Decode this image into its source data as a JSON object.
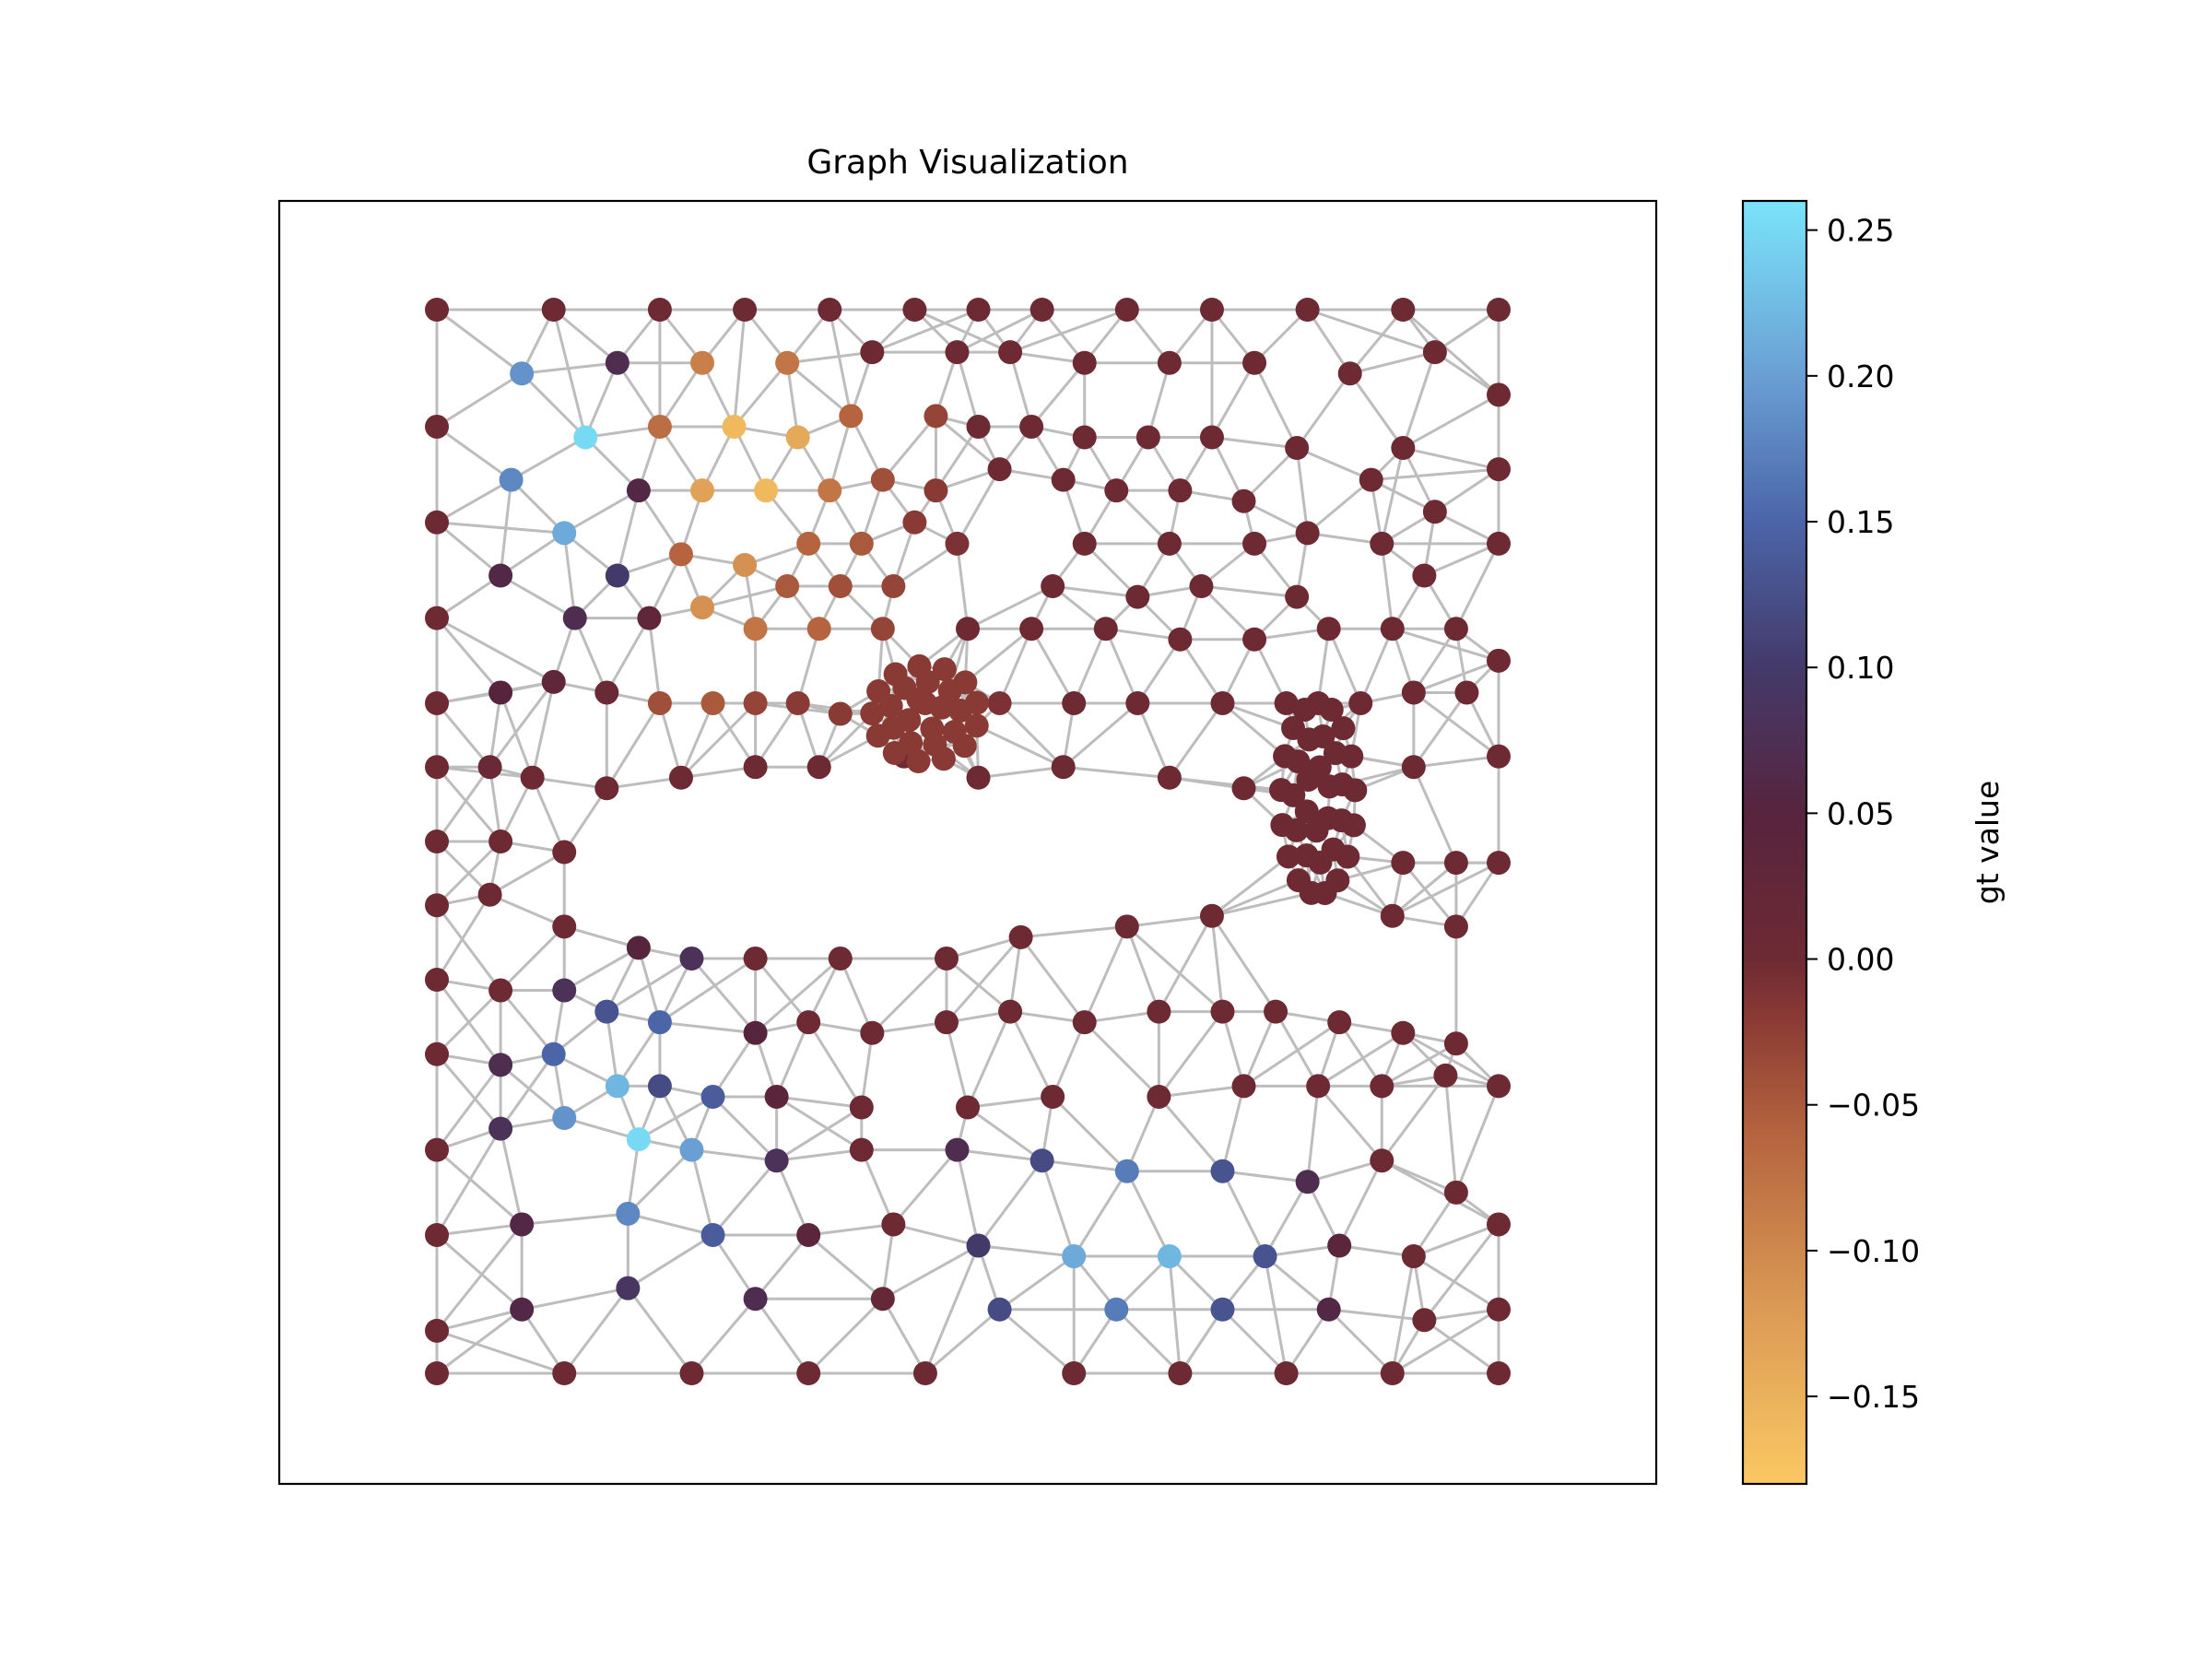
{
  "title": "Graph Visualization",
  "colorbar": {
    "label": "gt value",
    "range": [
      -0.18,
      0.26
    ],
    "ticks": [
      {
        "value": 0.25,
        "label": "0.25"
      },
      {
        "value": 0.2,
        "label": "0.20"
      },
      {
        "value": 0.15,
        "label": "0.15"
      },
      {
        "value": 0.1,
        "label": "0.10"
      },
      {
        "value": 0.05,
        "label": "0.05"
      },
      {
        "value": 0.0,
        "label": "0.00"
      },
      {
        "value": -0.05,
        "label": "−0.05"
      },
      {
        "value": -0.1,
        "label": "−0.10"
      },
      {
        "value": -0.15,
        "label": "−0.15"
      }
    ],
    "colormap": [
      {
        "value": -0.18,
        "color": "#FAC863"
      },
      {
        "value": -0.12,
        "color": "#DB9A55"
      },
      {
        "value": -0.06,
        "color": "#B5643F"
      },
      {
        "value": -0.02,
        "color": "#8A3A34"
      },
      {
        "value": 0.0,
        "color": "#6D2A33"
      },
      {
        "value": 0.05,
        "color": "#57243E"
      },
      {
        "value": 0.1,
        "color": "#443A6A"
      },
      {
        "value": 0.15,
        "color": "#4B65A8"
      },
      {
        "value": 0.2,
        "color": "#6A9FD4"
      },
      {
        "value": 0.26,
        "color": "#7AE4FA"
      }
    ]
  },
  "colors": {
    "edge": "#BDBDBD",
    "frame": "#000000"
  },
  "chart_data": {
    "type": "scatter",
    "title": "Graph Visualization",
    "description_of_values": "gt value per node; node positions are the mesh coordinates of the graph",
    "xlim": [
      0,
      1
    ],
    "ylim": [
      0,
      1
    ],
    "grid": false,
    "nodes": [
      {
        "x": 0.0,
        "y": 1.0,
        "v": 0.0
      },
      {
        "x": 0.11,
        "y": 1.0,
        "v": 0.0
      },
      {
        "x": 0.21,
        "y": 1.0,
        "v": 0.0
      },
      {
        "x": 0.29,
        "y": 1.0,
        "v": 0.0
      },
      {
        "x": 0.37,
        "y": 1.0,
        "v": 0.0
      },
      {
        "x": 0.45,
        "y": 1.0,
        "v": 0.0
      },
      {
        "x": 0.51,
        "y": 1.0,
        "v": 0.0
      },
      {
        "x": 0.57,
        "y": 1.0,
        "v": 0.0
      },
      {
        "x": 0.65,
        "y": 1.0,
        "v": 0.0
      },
      {
        "x": 0.73,
        "y": 1.0,
        "v": 0.0
      },
      {
        "x": 0.82,
        "y": 1.0,
        "v": 0.0
      },
      {
        "x": 0.91,
        "y": 1.0,
        "v": 0.0
      },
      {
        "x": 1.0,
        "y": 1.0,
        "v": 0.0
      },
      {
        "x": 0.08,
        "y": 0.94,
        "v": 0.19
      },
      {
        "x": 0.17,
        "y": 0.95,
        "v": 0.07
      },
      {
        "x": 0.25,
        "y": 0.95,
        "v": -0.09
      },
      {
        "x": 0.33,
        "y": 0.95,
        "v": -0.08
      },
      {
        "x": 0.41,
        "y": 0.96,
        "v": 0.0
      },
      {
        "x": 0.49,
        "y": 0.96,
        "v": 0.0
      },
      {
        "x": 0.54,
        "y": 0.96,
        "v": 0.0
      },
      {
        "x": 0.61,
        "y": 0.95,
        "v": 0.0
      },
      {
        "x": 0.69,
        "y": 0.95,
        "v": 0.0
      },
      {
        "x": 0.77,
        "y": 0.95,
        "v": 0.0
      },
      {
        "x": 0.86,
        "y": 0.94,
        "v": 0.0
      },
      {
        "x": 0.94,
        "y": 0.96,
        "v": 0.0
      },
      {
        "x": 1.0,
        "y": 0.92,
        "v": 0.0
      },
      {
        "x": 0.0,
        "y": 0.89,
        "v": 0.0
      },
      {
        "x": 0.14,
        "y": 0.88,
        "v": 0.25
      },
      {
        "x": 0.21,
        "y": 0.89,
        "v": -0.07
      },
      {
        "x": 0.28,
        "y": 0.89,
        "v": -0.16
      },
      {
        "x": 0.34,
        "y": 0.88,
        "v": -0.14
      },
      {
        "x": 0.39,
        "y": 0.9,
        "v": -0.06
      },
      {
        "x": 0.47,
        "y": 0.9,
        "v": -0.03
      },
      {
        "x": 0.51,
        "y": 0.89,
        "v": 0.0
      },
      {
        "x": 0.56,
        "y": 0.89,
        "v": 0.0
      },
      {
        "x": 0.61,
        "y": 0.88,
        "v": 0.0
      },
      {
        "x": 0.67,
        "y": 0.88,
        "v": 0.0
      },
      {
        "x": 0.73,
        "y": 0.88,
        "v": 0.0
      },
      {
        "x": 0.81,
        "y": 0.87,
        "v": 0.0
      },
      {
        "x": 0.91,
        "y": 0.87,
        "v": 0.0
      },
      {
        "x": 1.0,
        "y": 0.85,
        "v": 0.0
      },
      {
        "x": 0.07,
        "y": 0.84,
        "v": 0.18
      },
      {
        "x": 0.19,
        "y": 0.83,
        "v": 0.06
      },
      {
        "x": 0.25,
        "y": 0.83,
        "v": -0.13
      },
      {
        "x": 0.31,
        "y": 0.83,
        "v": -0.16
      },
      {
        "x": 0.37,
        "y": 0.83,
        "v": -0.08
      },
      {
        "x": 0.42,
        "y": 0.84,
        "v": -0.04
      },
      {
        "x": 0.47,
        "y": 0.83,
        "v": -0.02
      },
      {
        "x": 0.53,
        "y": 0.85,
        "v": 0.0
      },
      {
        "x": 0.59,
        "y": 0.84,
        "v": 0.0
      },
      {
        "x": 0.64,
        "y": 0.83,
        "v": 0.0
      },
      {
        "x": 0.7,
        "y": 0.83,
        "v": 0.0
      },
      {
        "x": 0.76,
        "y": 0.82,
        "v": 0.0
      },
      {
        "x": 0.88,
        "y": 0.84,
        "v": 0.0
      },
      {
        "x": 0.94,
        "y": 0.81,
        "v": 0.0
      },
      {
        "x": 0.0,
        "y": 0.8,
        "v": 0.0
      },
      {
        "x": 0.12,
        "y": 0.79,
        "v": 0.21
      },
      {
        "x": 0.23,
        "y": 0.77,
        "v": -0.06
      },
      {
        "x": 0.35,
        "y": 0.78,
        "v": -0.06
      },
      {
        "x": 0.4,
        "y": 0.78,
        "v": -0.05
      },
      {
        "x": 0.45,
        "y": 0.8,
        "v": -0.02
      },
      {
        "x": 0.49,
        "y": 0.78,
        "v": -0.01
      },
      {
        "x": 0.61,
        "y": 0.78,
        "v": 0.0
      },
      {
        "x": 0.69,
        "y": 0.78,
        "v": 0.0
      },
      {
        "x": 0.77,
        "y": 0.78,
        "v": 0.0
      },
      {
        "x": 0.82,
        "y": 0.79,
        "v": 0.0
      },
      {
        "x": 0.89,
        "y": 0.78,
        "v": 0.0
      },
      {
        "x": 1.0,
        "y": 0.78,
        "v": 0.0
      },
      {
        "x": 0.06,
        "y": 0.75,
        "v": 0.06
      },
      {
        "x": 0.17,
        "y": 0.75,
        "v": 0.1
      },
      {
        "x": 0.29,
        "y": 0.76,
        "v": -0.11
      },
      {
        "x": 0.33,
        "y": 0.74,
        "v": -0.05
      },
      {
        "x": 0.38,
        "y": 0.74,
        "v": -0.04
      },
      {
        "x": 0.43,
        "y": 0.74,
        "v": -0.03
      },
      {
        "x": 0.58,
        "y": 0.74,
        "v": 0.0
      },
      {
        "x": 0.66,
        "y": 0.73,
        "v": 0.0
      },
      {
        "x": 0.72,
        "y": 0.74,
        "v": 0.0
      },
      {
        "x": 0.81,
        "y": 0.73,
        "v": 0.0
      },
      {
        "x": 0.93,
        "y": 0.75,
        "v": 0.0
      },
      {
        "x": 0.0,
        "y": 0.71,
        "v": 0.0
      },
      {
        "x": 0.13,
        "y": 0.71,
        "v": 0.07
      },
      {
        "x": 0.2,
        "y": 0.71,
        "v": 0.03
      },
      {
        "x": 0.25,
        "y": 0.72,
        "v": -0.11
      },
      {
        "x": 0.3,
        "y": 0.7,
        "v": -0.08
      },
      {
        "x": 0.36,
        "y": 0.7,
        "v": -0.06
      },
      {
        "x": 0.42,
        "y": 0.7,
        "v": -0.03
      },
      {
        "x": 0.5,
        "y": 0.7,
        "v": 0.0
      },
      {
        "x": 0.56,
        "y": 0.7,
        "v": 0.0
      },
      {
        "x": 0.63,
        "y": 0.7,
        "v": 0.0
      },
      {
        "x": 0.7,
        "y": 0.69,
        "v": 0.0
      },
      {
        "x": 0.77,
        "y": 0.69,
        "v": 0.0
      },
      {
        "x": 0.84,
        "y": 0.7,
        "v": 0.0
      },
      {
        "x": 0.9,
        "y": 0.7,
        "v": 0.0
      },
      {
        "x": 0.96,
        "y": 0.7,
        "v": 0.0
      },
      {
        "x": 1.0,
        "y": 0.67,
        "v": 0.0
      },
      {
        "x": 0.0,
        "y": 0.63,
        "v": 0.0
      },
      {
        "x": 0.06,
        "y": 0.64,
        "v": 0.05
      },
      {
        "x": 0.11,
        "y": 0.65,
        "v": 0.03
      },
      {
        "x": 0.16,
        "y": 0.64,
        "v": 0.01
      },
      {
        "x": 0.21,
        "y": 0.63,
        "v": -0.04
      },
      {
        "x": 0.26,
        "y": 0.63,
        "v": -0.05
      },
      {
        "x": 0.3,
        "y": 0.63,
        "v": -0.03
      },
      {
        "x": 0.34,
        "y": 0.63,
        "v": -0.02
      },
      {
        "x": 0.38,
        "y": 0.62,
        "v": -0.02
      },
      {
        "x": 0.46,
        "y": 0.63,
        "v": -0.02
      },
      {
        "x": 0.53,
        "y": 0.63,
        "v": -0.01
      },
      {
        "x": 0.6,
        "y": 0.63,
        "v": 0.0
      },
      {
        "x": 0.66,
        "y": 0.63,
        "v": 0.0
      },
      {
        "x": 0.74,
        "y": 0.63,
        "v": 0.0
      },
      {
        "x": 0.8,
        "y": 0.63,
        "v": 0.0
      },
      {
        "x": 0.87,
        "y": 0.63,
        "v": 0.0
      },
      {
        "x": 0.92,
        "y": 0.64,
        "v": 0.0
      },
      {
        "x": 0.97,
        "y": 0.64,
        "v": 0.0
      },
      {
        "x": 0.0,
        "y": 0.57,
        "v": 0.0
      },
      {
        "x": 0.05,
        "y": 0.57,
        "v": 0.01
      },
      {
        "x": 0.09,
        "y": 0.56,
        "v": 0.0
      },
      {
        "x": 0.16,
        "y": 0.55,
        "v": 0.0
      },
      {
        "x": 0.23,
        "y": 0.56,
        "v": 0.0
      },
      {
        "x": 0.3,
        "y": 0.57,
        "v": 0.0
      },
      {
        "x": 0.36,
        "y": 0.57,
        "v": 0.0
      },
      {
        "x": 0.44,
        "y": 0.58,
        "v": 0.0
      },
      {
        "x": 0.51,
        "y": 0.56,
        "v": 0.0
      },
      {
        "x": 0.59,
        "y": 0.57,
        "v": 0.0
      },
      {
        "x": 0.69,
        "y": 0.56,
        "v": 0.0
      },
      {
        "x": 0.76,
        "y": 0.55,
        "v": 0.0
      },
      {
        "x": 0.92,
        "y": 0.57,
        "v": 0.0
      },
      {
        "x": 1.0,
        "y": 0.58,
        "v": 0.0
      },
      {
        "x": 0.0,
        "y": 0.5,
        "v": 0.0
      },
      {
        "x": 0.06,
        "y": 0.5,
        "v": 0.0
      },
      {
        "x": 0.12,
        "y": 0.49,
        "v": 0.0
      },
      {
        "x": 0.91,
        "y": 0.48,
        "v": 0.0
      },
      {
        "x": 0.96,
        "y": 0.48,
        "v": 0.0
      },
      {
        "x": 1.0,
        "y": 0.48,
        "v": 0.0
      },
      {
        "x": 0.0,
        "y": 0.44,
        "v": 0.0
      },
      {
        "x": 0.05,
        "y": 0.45,
        "v": 0.0
      },
      {
        "x": 0.12,
        "y": 0.42,
        "v": 0.0
      },
      {
        "x": 0.19,
        "y": 0.4,
        "v": 0.05
      },
      {
        "x": 0.24,
        "y": 0.39,
        "v": 0.08
      },
      {
        "x": 0.3,
        "y": 0.39,
        "v": 0.0
      },
      {
        "x": 0.38,
        "y": 0.39,
        "v": 0.0
      },
      {
        "x": 0.48,
        "y": 0.39,
        "v": 0.0
      },
      {
        "x": 0.55,
        "y": 0.41,
        "v": 0.0
      },
      {
        "x": 0.65,
        "y": 0.42,
        "v": 0.0
      },
      {
        "x": 0.73,
        "y": 0.43,
        "v": 0.0
      },
      {
        "x": 0.9,
        "y": 0.43,
        "v": 0.0
      },
      {
        "x": 0.96,
        "y": 0.42,
        "v": 0.0
      },
      {
        "x": 0.0,
        "y": 0.37,
        "v": 0.0
      },
      {
        "x": 0.06,
        "y": 0.36,
        "v": 0.0
      },
      {
        "x": 0.12,
        "y": 0.36,
        "v": 0.08
      },
      {
        "x": 0.16,
        "y": 0.34,
        "v": 0.13
      },
      {
        "x": 0.21,
        "y": 0.33,
        "v": 0.15
      },
      {
        "x": 0.3,
        "y": 0.32,
        "v": 0.05
      },
      {
        "x": 0.35,
        "y": 0.33,
        "v": 0.0
      },
      {
        "x": 0.41,
        "y": 0.32,
        "v": 0.0
      },
      {
        "x": 0.48,
        "y": 0.33,
        "v": 0.0
      },
      {
        "x": 0.54,
        "y": 0.34,
        "v": 0.0
      },
      {
        "x": 0.61,
        "y": 0.33,
        "v": 0.0
      },
      {
        "x": 0.68,
        "y": 0.34,
        "v": 0.0
      },
      {
        "x": 0.74,
        "y": 0.34,
        "v": 0.0
      },
      {
        "x": 0.79,
        "y": 0.34,
        "v": 0.0
      },
      {
        "x": 0.85,
        "y": 0.33,
        "v": 0.0
      },
      {
        "x": 0.91,
        "y": 0.32,
        "v": 0.0
      },
      {
        "x": 0.96,
        "y": 0.31,
        "v": 0.0
      },
      {
        "x": 0.0,
        "y": 0.3,
        "v": 0.0
      },
      {
        "x": 0.06,
        "y": 0.29,
        "v": 0.07
      },
      {
        "x": 0.11,
        "y": 0.3,
        "v": 0.15
      },
      {
        "x": 0.17,
        "y": 0.27,
        "v": 0.22
      },
      {
        "x": 0.21,
        "y": 0.27,
        "v": 0.12
      },
      {
        "x": 0.26,
        "y": 0.26,
        "v": 0.14
      },
      {
        "x": 0.32,
        "y": 0.26,
        "v": 0.04
      },
      {
        "x": 0.4,
        "y": 0.25,
        "v": 0.0
      },
      {
        "x": 0.5,
        "y": 0.25,
        "v": 0.0
      },
      {
        "x": 0.58,
        "y": 0.26,
        "v": 0.0
      },
      {
        "x": 0.68,
        "y": 0.26,
        "v": 0.0
      },
      {
        "x": 0.76,
        "y": 0.27,
        "v": 0.0
      },
      {
        "x": 0.83,
        "y": 0.27,
        "v": 0.0
      },
      {
        "x": 0.89,
        "y": 0.27,
        "v": 0.0
      },
      {
        "x": 0.95,
        "y": 0.28,
        "v": 0.0
      },
      {
        "x": 1.0,
        "y": 0.27,
        "v": 0.0
      },
      {
        "x": 0.0,
        "y": 0.21,
        "v": 0.0
      },
      {
        "x": 0.06,
        "y": 0.23,
        "v": 0.08
      },
      {
        "x": 0.12,
        "y": 0.24,
        "v": 0.19
      },
      {
        "x": 0.19,
        "y": 0.22,
        "v": 0.25
      },
      {
        "x": 0.24,
        "y": 0.21,
        "v": 0.2
      },
      {
        "x": 0.32,
        "y": 0.2,
        "v": 0.08
      },
      {
        "x": 0.4,
        "y": 0.21,
        "v": 0.0
      },
      {
        "x": 0.49,
        "y": 0.21,
        "v": 0.07
      },
      {
        "x": 0.57,
        "y": 0.2,
        "v": 0.12
      },
      {
        "x": 0.65,
        "y": 0.19,
        "v": 0.17
      },
      {
        "x": 0.74,
        "y": 0.19,
        "v": 0.13
      },
      {
        "x": 0.82,
        "y": 0.18,
        "v": 0.07
      },
      {
        "x": 0.89,
        "y": 0.2,
        "v": 0.0
      },
      {
        "x": 0.96,
        "y": 0.17,
        "v": 0.0
      },
      {
        "x": 0.0,
        "y": 0.13,
        "v": 0.0
      },
      {
        "x": 0.08,
        "y": 0.14,
        "v": 0.06
      },
      {
        "x": 0.18,
        "y": 0.15,
        "v": 0.18
      },
      {
        "x": 0.26,
        "y": 0.13,
        "v": 0.14
      },
      {
        "x": 0.35,
        "y": 0.13,
        "v": 0.04
      },
      {
        "x": 0.43,
        "y": 0.14,
        "v": 0.0
      },
      {
        "x": 0.51,
        "y": 0.12,
        "v": 0.1
      },
      {
        "x": 0.6,
        "y": 0.11,
        "v": 0.21
      },
      {
        "x": 0.69,
        "y": 0.11,
        "v": 0.22
      },
      {
        "x": 0.78,
        "y": 0.11,
        "v": 0.13
      },
      {
        "x": 0.85,
        "y": 0.12,
        "v": 0.04
      },
      {
        "x": 0.92,
        "y": 0.11,
        "v": 0.0
      },
      {
        "x": 1.0,
        "y": 0.14,
        "v": 0.0
      },
      {
        "x": 0.0,
        "y": 0.04,
        "v": 0.0
      },
      {
        "x": 0.08,
        "y": 0.06,
        "v": 0.06
      },
      {
        "x": 0.18,
        "y": 0.08,
        "v": 0.09
      },
      {
        "x": 0.3,
        "y": 0.07,
        "v": 0.07
      },
      {
        "x": 0.42,
        "y": 0.07,
        "v": 0.02
      },
      {
        "x": 0.53,
        "y": 0.06,
        "v": 0.12
      },
      {
        "x": 0.64,
        "y": 0.06,
        "v": 0.17
      },
      {
        "x": 0.74,
        "y": 0.06,
        "v": 0.13
      },
      {
        "x": 0.84,
        "y": 0.06,
        "v": 0.06
      },
      {
        "x": 0.93,
        "y": 0.05,
        "v": 0.0
      },
      {
        "x": 1.0,
        "y": 0.06,
        "v": 0.0
      },
      {
        "x": 0.0,
        "y": 0.0,
        "v": 0.0
      },
      {
        "x": 0.12,
        "y": 0.0,
        "v": 0.0
      },
      {
        "x": 0.24,
        "y": 0.0,
        "v": 0.0
      },
      {
        "x": 0.35,
        "y": 0.0,
        "v": 0.0
      },
      {
        "x": 0.46,
        "y": 0.0,
        "v": 0.0
      },
      {
        "x": 0.6,
        "y": 0.0,
        "v": 0.0
      },
      {
        "x": 0.7,
        "y": 0.0,
        "v": 0.0
      },
      {
        "x": 0.8,
        "y": 0.0,
        "v": 0.0
      },
      {
        "x": 0.9,
        "y": 0.0,
        "v": 0.0
      },
      {
        "x": 1.0,
        "y": 0.0,
        "v": 0.0
      }
    ],
    "clusters": [
      {
        "cx": 0.46,
        "cy": 0.62,
        "rx": 0.05,
        "ry": 0.045,
        "count": 26,
        "v": -0.02
      },
      {
        "cx": 0.83,
        "cy": 0.54,
        "rx": 0.035,
        "ry": 0.09,
        "count": 34,
        "v": 0.0
      }
    ]
  }
}
